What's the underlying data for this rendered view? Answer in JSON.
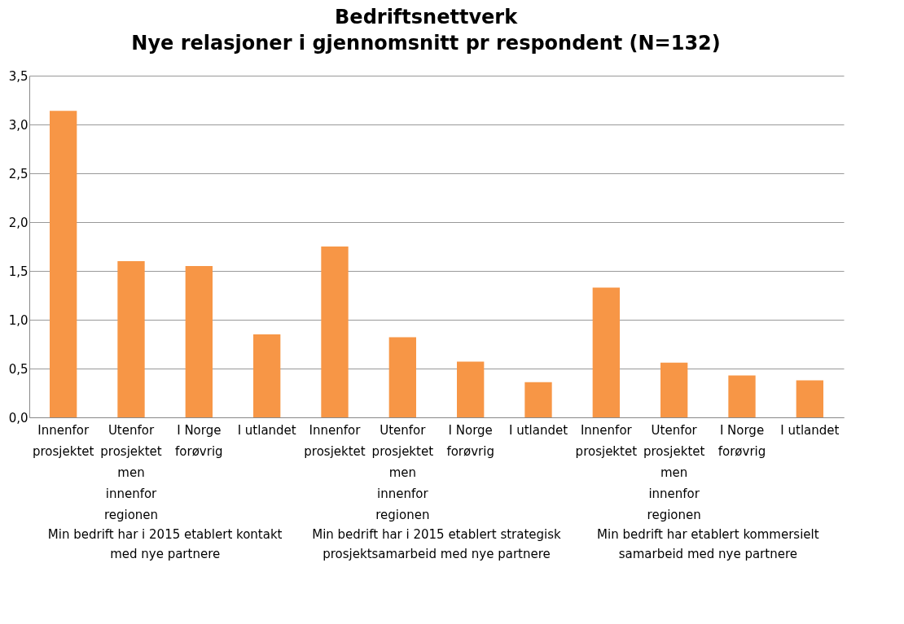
{
  "chart_data": {
    "type": "bar",
    "title": "Bedriftsnettverk",
    "subtitle": "Nye relasjoner i gjennomsnitt pr respondent (N=132)",
    "categories": [
      "Innenfor prosjektet",
      "Utenfor prosjektet men innenfor regionen",
      "I Norge forøvrig",
      "I utlandet",
      "Innenfor prosjektet",
      "Utenfor prosjektet men innenfor regionen",
      "I Norge forøvrig",
      "I utlandet",
      "Innenfor prosjektet",
      "Utenfor prosjektet men innenfor regionen",
      "I Norge forøvrig",
      "I utlandet"
    ],
    "values": [
      3.14,
      1.6,
      1.55,
      0.85,
      1.75,
      0.82,
      0.57,
      0.36,
      1.33,
      0.56,
      0.43,
      0.38
    ],
    "color": "#f79646",
    "ylim": [
      0,
      3.5
    ],
    "yticks": [
      {
        "value": 0,
        "label": "0,0"
      },
      {
        "value": 0.5,
        "label": "0,5"
      },
      {
        "value": 1,
        "label": "1,0"
      },
      {
        "value": 1.5,
        "label": "1,5"
      },
      {
        "value": 2,
        "label": "2,0"
      },
      {
        "value": 2.5,
        "label": "2,5"
      },
      {
        "value": 3,
        "label": "3,0"
      },
      {
        "value": 3.5,
        "label": "3,5"
      }
    ],
    "grid": "y",
    "annotations": [
      "Min bedrift har i 2015 etablert kontakt med nye partnere",
      "Min bedrift har i 2015 etablert strategisk prosjektsamarbeid med nye partnere",
      "Min bedrift har etablert kommersielt samarbeid med nye partnere"
    ]
  }
}
